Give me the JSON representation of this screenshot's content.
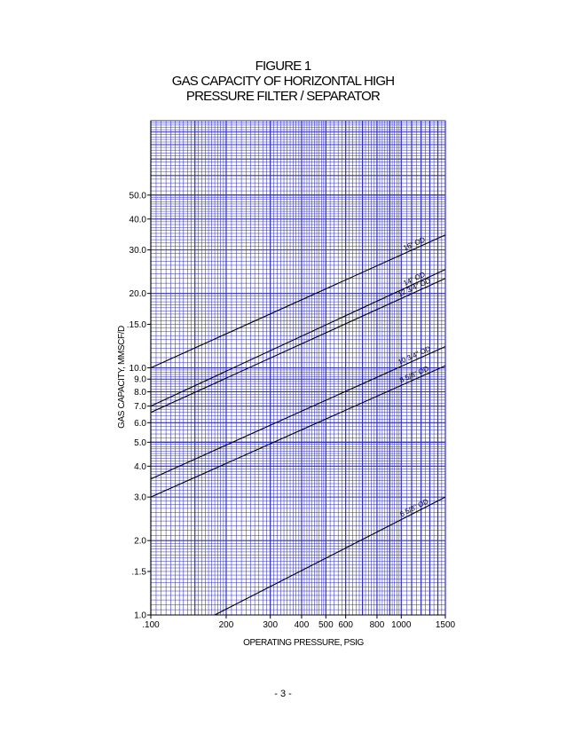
{
  "page": {
    "page_number": "- 3 -"
  },
  "chart_data": {
    "type": "line",
    "title_lines": [
      "FIGURE 1",
      "GAS CAPACITY OF HORIZONTAL HIGH",
      "PRESSURE FILTER / SEPARATOR"
    ],
    "xlabel": "OPERATING PRESSURE, PSIG",
    "ylabel": "GAS CAPACITY, MMSCF/D",
    "x_scale": "log",
    "y_scale": "log",
    "xlim": [
      100,
      1500
    ],
    "ylim": [
      1.0,
      100
    ],
    "x_ticks": [
      {
        "value": 100,
        "label": ".100"
      },
      {
        "value": 200,
        "label": "200"
      },
      {
        "value": 300,
        "label": "300"
      },
      {
        "value": 400,
        "label": "400"
      },
      {
        "value": 500,
        "label": "500"
      },
      {
        "value": 600,
        "label": "600"
      },
      {
        "value": 800,
        "label": "800"
      },
      {
        "value": 1000,
        "label": "1000"
      },
      {
        "value": 1500,
        "label": "1500"
      }
    ],
    "y_ticks": [
      {
        "value": 1.0,
        "label": "1.0"
      },
      {
        "value": 1.5,
        "label": ".1.5"
      },
      {
        "value": 2.0,
        "label": "2.0"
      },
      {
        "value": 3.0,
        "label": "3.0"
      },
      {
        "value": 4.0,
        "label": "4.0"
      },
      {
        "value": 5.0,
        "label": "5.0"
      },
      {
        "value": 6.0,
        "label": "6.0"
      },
      {
        "value": 7.0,
        "label": "7.0"
      },
      {
        "value": 8.0,
        "label": "8.0"
      },
      {
        "value": 9.0,
        "label": "9.0"
      },
      {
        "value": 10.0,
        "label": "10.0"
      },
      {
        "value": 15.0,
        "label": ".15.0"
      },
      {
        "value": 20.0,
        "label": "20.0"
      },
      {
        "value": 30.0,
        "label": "30.0"
      },
      {
        "value": 40.0,
        "label": "40.0"
      },
      {
        "value": 50.0,
        "label": "50.0"
      }
    ],
    "grid": true,
    "grid_color": "#2d2dcf",
    "series": [
      {
        "name": "16\" OD",
        "x": [
          100,
          1500
        ],
        "y": [
          10.0,
          34.5
        ]
      },
      {
        "name": "14\" OD",
        "x": [
          100,
          1500
        ],
        "y": [
          7.0,
          25.0
        ]
      },
      {
        "name": "12 3/4\" OD",
        "x": [
          100,
          1500
        ],
        "y": [
          6.6,
          23.0
        ]
      },
      {
        "name": "10 3/4\" OD",
        "x": [
          100,
          1500
        ],
        "y": [
          3.55,
          12.2
        ]
      },
      {
        "name": "8 5/8\" OD",
        "x": [
          100,
          1500
        ],
        "y": [
          3.0,
          10.2
        ]
      },
      {
        "name": "6 5/8\" OD",
        "x": [
          180,
          1500
        ],
        "y": [
          1.0,
          3.0
        ]
      }
    ]
  }
}
